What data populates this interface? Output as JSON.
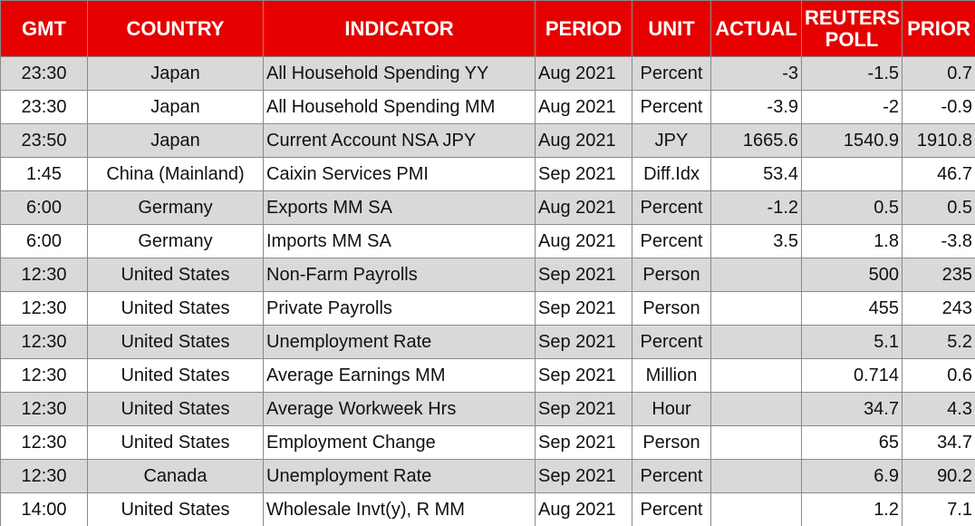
{
  "table": {
    "header": [
      "GMT",
      "COUNTRY",
      "INDICATOR",
      "PERIOD",
      "UNIT",
      "ACTUAL",
      "REUTERS POLL",
      "PRIOR"
    ],
    "rows": [
      [
        "23:30",
        "Japan",
        "All Household Spending YY",
        "Aug 2021",
        "Percent",
        "-3",
        "-1.5",
        "0.7"
      ],
      [
        "23:30",
        "Japan",
        "All Household Spending MM",
        "Aug 2021",
        "Percent",
        "-3.9",
        "-2",
        "-0.9"
      ],
      [
        "23:50",
        "Japan",
        "Current Account NSA JPY",
        "Aug 2021",
        "JPY",
        "1665.6",
        "1540.9",
        "1910.8"
      ],
      [
        "1:45",
        "China (Mainland)",
        "Caixin Services PMI",
        "Sep 2021",
        "Diff.Idx",
        "53.4",
        null,
        "46.7"
      ],
      [
        "6:00",
        "Germany",
        "Exports MM SA",
        "Aug 2021",
        "Percent",
        "-1.2",
        "0.5",
        "0.5"
      ],
      [
        "6:00",
        "Germany",
        "Imports MM SA",
        "Aug 2021",
        "Percent",
        "3.5",
        "1.8",
        "-3.8"
      ],
      [
        "12:30",
        "United States",
        "Non-Farm Payrolls",
        "Sep 2021",
        "Person",
        null,
        "500",
        "235"
      ],
      [
        "12:30",
        "United States",
        "Private Payrolls",
        "Sep 2021",
        "Person",
        null,
        "455",
        "243"
      ],
      [
        "12:30",
        "United States",
        "Unemployment Rate",
        "Sep 2021",
        "Percent",
        null,
        "5.1",
        "5.2"
      ],
      [
        "12:30",
        "United States",
        "Average Earnings MM",
        "Sep 2021",
        "Million",
        null,
        "0.714",
        "0.6"
      ],
      [
        "12:30",
        "United States",
        "Average Workweek Hrs",
        "Sep 2021",
        "Hour",
        null,
        "34.7",
        "4.3"
      ],
      [
        "12:30",
        "United States",
        "Employment Change",
        "Sep 2021",
        "Person",
        null,
        "65",
        "34.7"
      ],
      [
        "12:30",
        "Canada",
        "Unemployment Rate",
        "Sep 2021",
        "Percent",
        null,
        "6.9",
        "90.2"
      ],
      [
        "14:00",
        "United States",
        "Wholesale Invt(y), R MM",
        "Aug 2021",
        "Percent",
        null,
        "1.2",
        "7.1"
      ]
    ]
  }
}
